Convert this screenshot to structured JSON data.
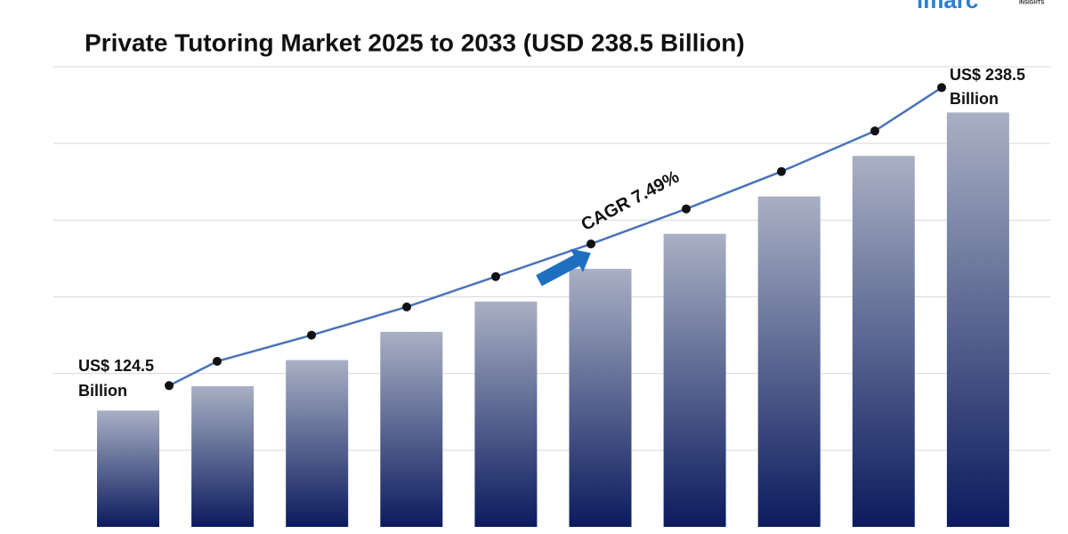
{
  "chart_data": {
    "type": "bar",
    "title": "Private Tutoring Market 2025 to 2033 (USD 238.5 Billion)",
    "values": [
      124.5,
      133.8,
      143.8,
      154.6,
      166.2,
      178.7,
      192.1,
      206.4,
      221.9,
      238.5
    ],
    "ylim": [
      80,
      256
    ],
    "yticks": [
      109.3,
      138.7,
      168,
      197.3,
      226.7,
      256
    ],
    "grid": true,
    "bar_color_top": "#a9b0c4",
    "bar_color_bottom": "#0b1b5e",
    "line_color": "#4a73b9",
    "start_label": [
      "US$ 124.5",
      "Billion"
    ],
    "end_label": [
      "US$ 238.5",
      "Billion"
    ],
    "cagr_label": "CAGR 7.49%",
    "logo": "imarc",
    "logo_sub": "INSIGHTS"
  }
}
